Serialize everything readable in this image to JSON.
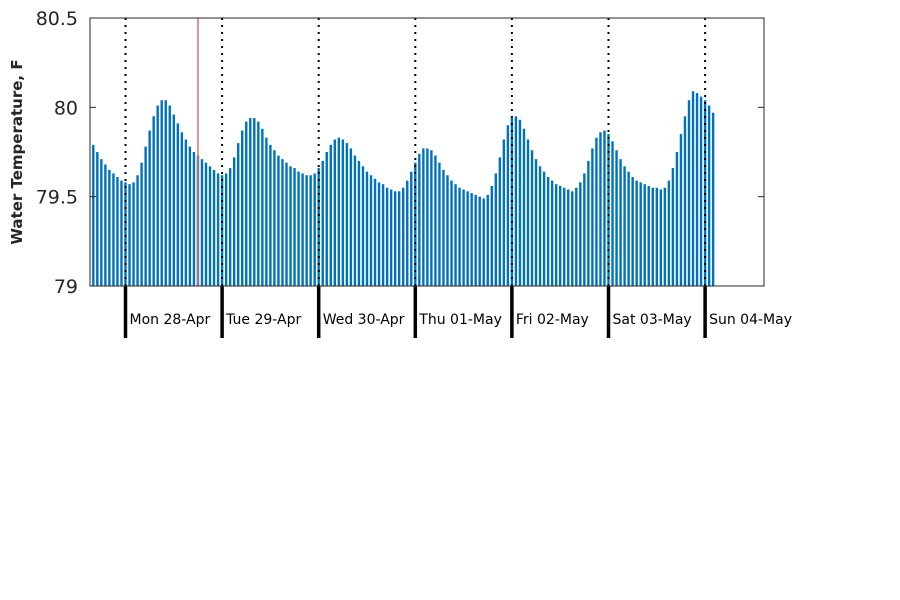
{
  "chart_data": {
    "type": "bar",
    "title": "",
    "xlabel": "",
    "ylabel": "Water Temperature, F",
    "ylim": [
      79,
      80.5
    ],
    "yticks": [
      "79",
      "79.5",
      "80",
      "80.5"
    ],
    "grid": false,
    "x_unit": "hourly samples",
    "day_labels": [
      "Mon 28-Apr",
      "Tue 29-Apr",
      "Wed 30-Apr",
      "Thu 01-May",
      "Fri 02-May",
      "Sat 03-May",
      "Sun 04-May"
    ],
    "current_time_marker": "Mon 28-Apr 18:00",
    "colors": {
      "bar": "#0072BD",
      "current_time_marker": "#E07070",
      "axes": "#262626"
    },
    "series": [
      {
        "values": [
          79.85,
          79.79,
          79.75,
          79.71,
          79.68,
          79.65,
          79.63,
          79.61,
          79.59,
          79.58,
          79.57,
          79.58,
          79.62,
          79.69,
          79.78,
          79.87,
          79.95,
          80.01,
          80.04,
          80.04,
          80.01,
          79.96,
          79.91,
          79.86,
          79.82,
          79.78,
          79.75,
          79.73,
          79.71,
          79.69,
          79.67,
          79.65,
          79.63,
          79.62,
          79.63,
          79.66,
          79.72,
          79.8,
          79.87,
          79.92,
          79.94,
          79.94,
          79.92,
          79.88,
          79.83,
          79.79,
          79.76,
          79.73,
          79.71,
          79.69,
          79.67,
          79.66,
          79.64,
          79.63,
          79.62,
          79.62,
          79.63,
          79.66,
          79.7,
          79.75,
          79.79,
          79.82,
          79.83,
          79.82,
          79.8,
          79.77,
          79.73,
          79.7,
          79.67,
          79.64,
          79.62,
          79.6,
          79.58,
          79.57,
          79.55,
          79.54,
          79.53,
          79.53,
          79.55,
          79.59,
          79.64,
          79.69,
          79.74,
          79.77,
          79.77,
          79.76,
          79.73,
          79.69,
          79.65,
          79.62,
          79.59,
          79.57,
          79.55,
          79.54,
          79.53,
          79.52,
          79.51,
          79.5,
          79.49,
          79.51,
          79.56,
          79.63,
          79.72,
          79.82,
          79.9,
          79.94,
          79.95,
          79.93,
          79.88,
          79.82,
          79.76,
          79.71,
          79.67,
          79.64,
          79.61,
          79.59,
          79.57,
          79.56,
          79.55,
          79.54,
          79.53,
          79.55,
          79.58,
          79.63,
          79.7,
          79.77,
          79.83,
          79.86,
          79.87,
          79.85,
          79.81,
          79.76,
          79.71,
          79.67,
          79.64,
          79.61,
          79.59,
          79.58,
          79.57,
          79.56,
          79.55,
          79.55,
          79.54,
          79.55,
          79.59,
          79.66,
          79.75,
          79.85,
          79.95,
          80.04,
          80.09,
          80.08,
          80.06,
          80.04,
          80.01,
          79.97
        ]
      }
    ]
  }
}
